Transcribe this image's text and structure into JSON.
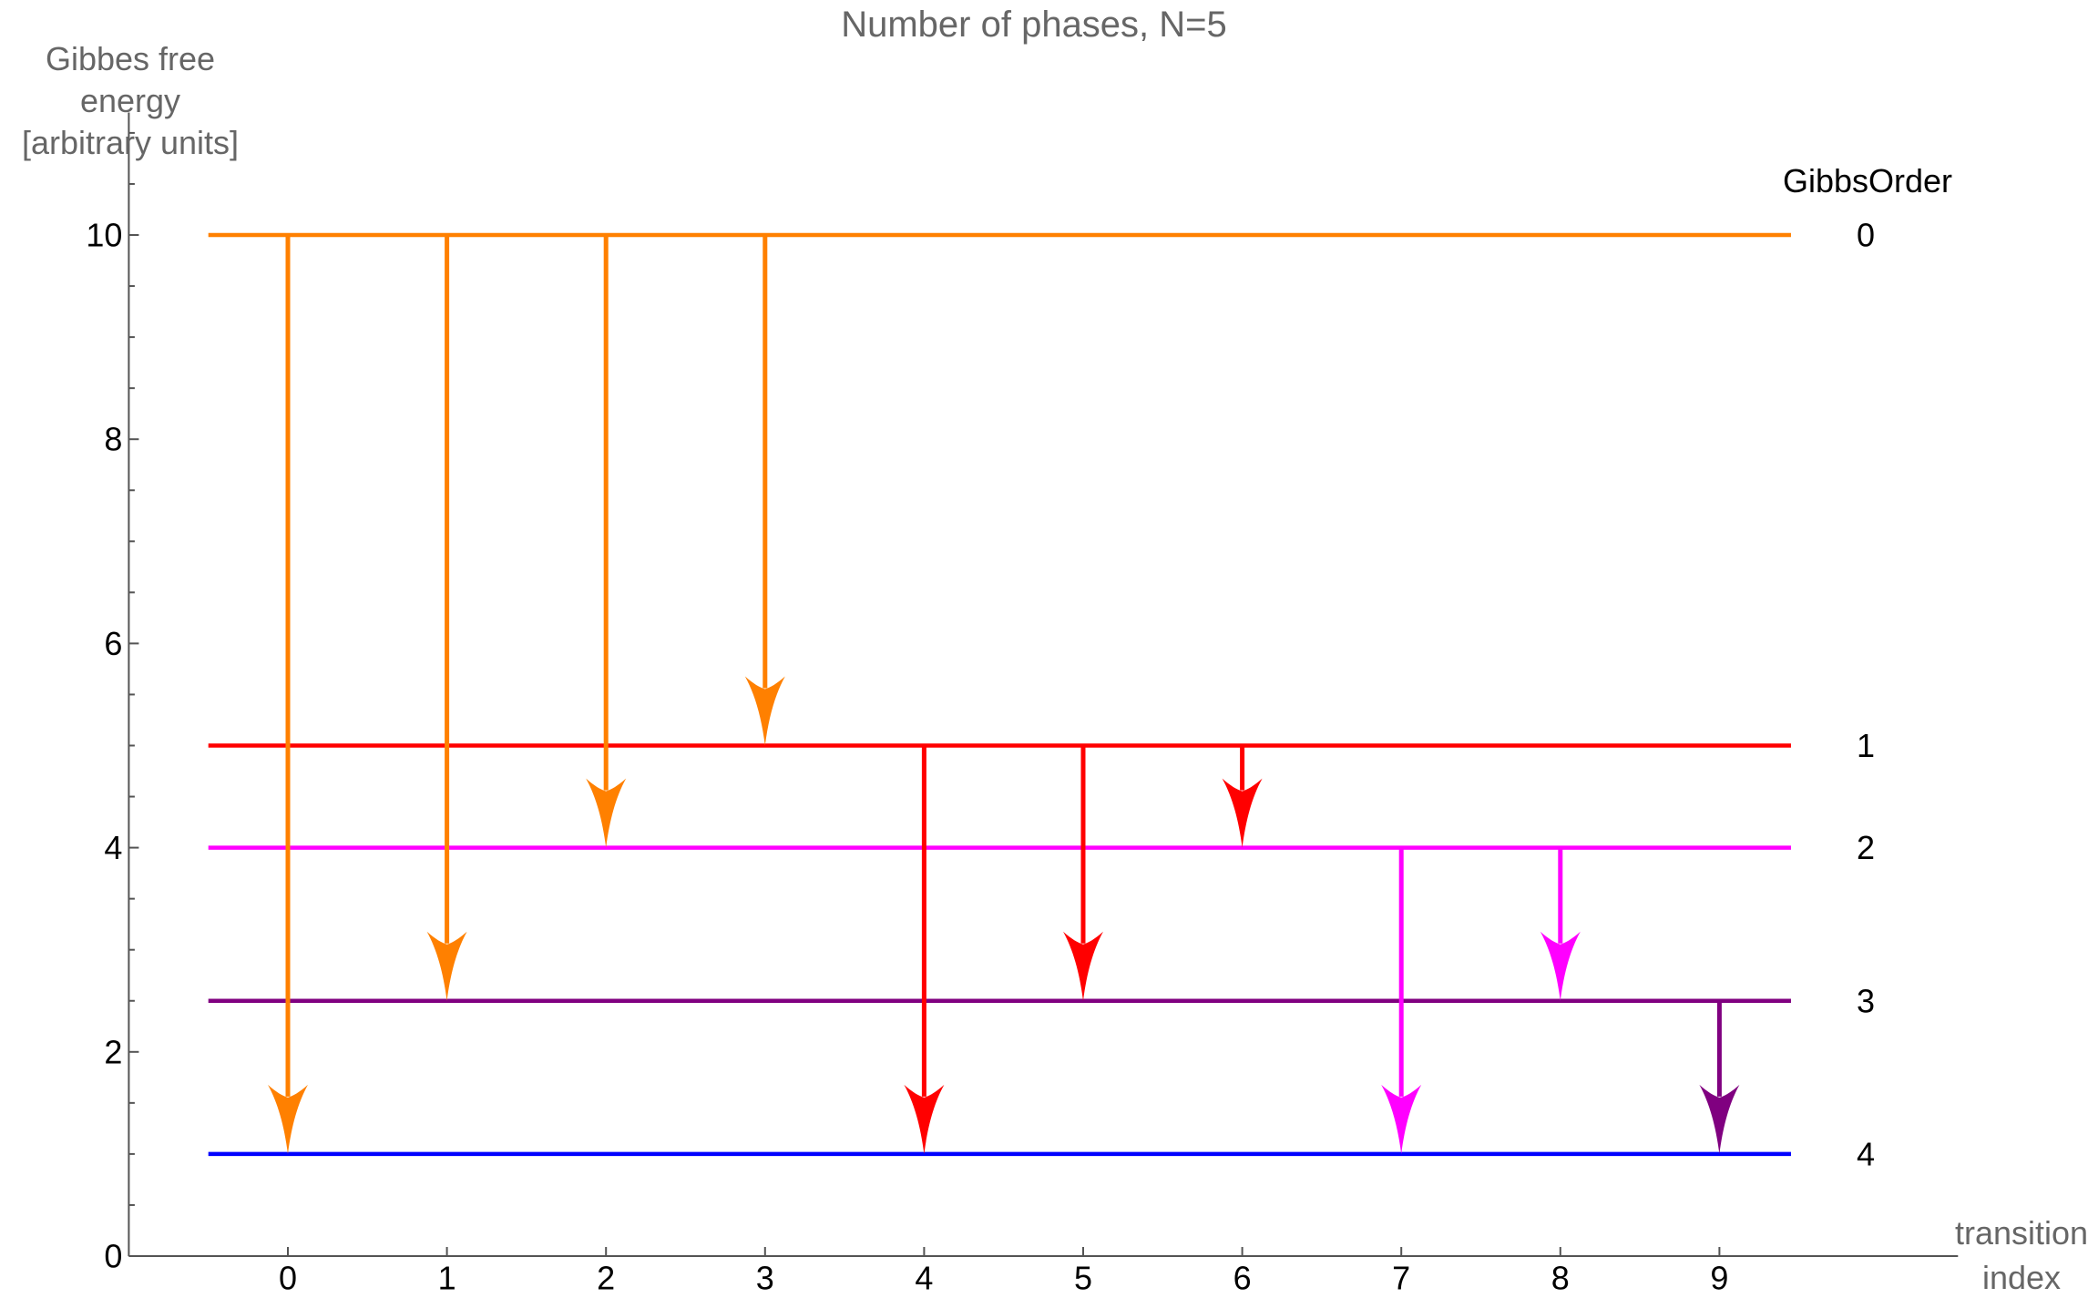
{
  "title": "Number of phases, N=5",
  "chart_data": {
    "type": "line",
    "subtype": "energy-level-transition-diagram",
    "title": "Number of phases, N=5",
    "ylabel_lines": [
      "Gibbes free energy",
      "[arbitrary units]"
    ],
    "xlabel_lines": [
      "transition",
      "index"
    ],
    "legend_title": "GibbsOrder",
    "legend_position": "right",
    "grid": false,
    "xlim": [
      -1,
      10.5
    ],
    "ylim": [
      0,
      11.2
    ],
    "x_ticks": [
      0,
      1,
      2,
      3,
      4,
      5,
      6,
      7,
      8,
      9
    ],
    "y_ticks": [
      0,
      2,
      4,
      6,
      8,
      10
    ],
    "y_minor_step": 0.5,
    "axis_color": "#545454",
    "label_color": "#666666",
    "tick_label_color": "#000000",
    "level_span_x": [
      -0.5,
      9.45
    ],
    "levels": [
      {
        "gibbs_order": 0,
        "energy": 10,
        "color": "#FF8000"
      },
      {
        "gibbs_order": 1,
        "energy": 5,
        "color": "#FF0000"
      },
      {
        "gibbs_order": 2,
        "energy": 4,
        "color": "#FF00FF"
      },
      {
        "gibbs_order": 3,
        "energy": 2.5,
        "color": "#800080"
      },
      {
        "gibbs_order": 4,
        "energy": 1,
        "color": "#0000FF"
      }
    ],
    "transitions": [
      {
        "index": 0,
        "from_energy": 10,
        "to_energy": 1,
        "color": "#FF8000"
      },
      {
        "index": 1,
        "from_energy": 10,
        "to_energy": 2.5,
        "color": "#FF8000"
      },
      {
        "index": 2,
        "from_energy": 10,
        "to_energy": 4,
        "color": "#FF8000"
      },
      {
        "index": 3,
        "from_energy": 10,
        "to_energy": 5,
        "color": "#FF8000"
      },
      {
        "index": 4,
        "from_energy": 5,
        "to_energy": 1,
        "color": "#FF0000"
      },
      {
        "index": 5,
        "from_energy": 5,
        "to_energy": 2.5,
        "color": "#FF0000"
      },
      {
        "index": 6,
        "from_energy": 5,
        "to_energy": 4,
        "color": "#FF0000"
      },
      {
        "index": 7,
        "from_energy": 4,
        "to_energy": 1,
        "color": "#FF00FF"
      },
      {
        "index": 8,
        "from_energy": 4,
        "to_energy": 2.5,
        "color": "#FF00FF"
      },
      {
        "index": 9,
        "from_energy": 2.5,
        "to_energy": 1,
        "color": "#800080"
      }
    ]
  }
}
